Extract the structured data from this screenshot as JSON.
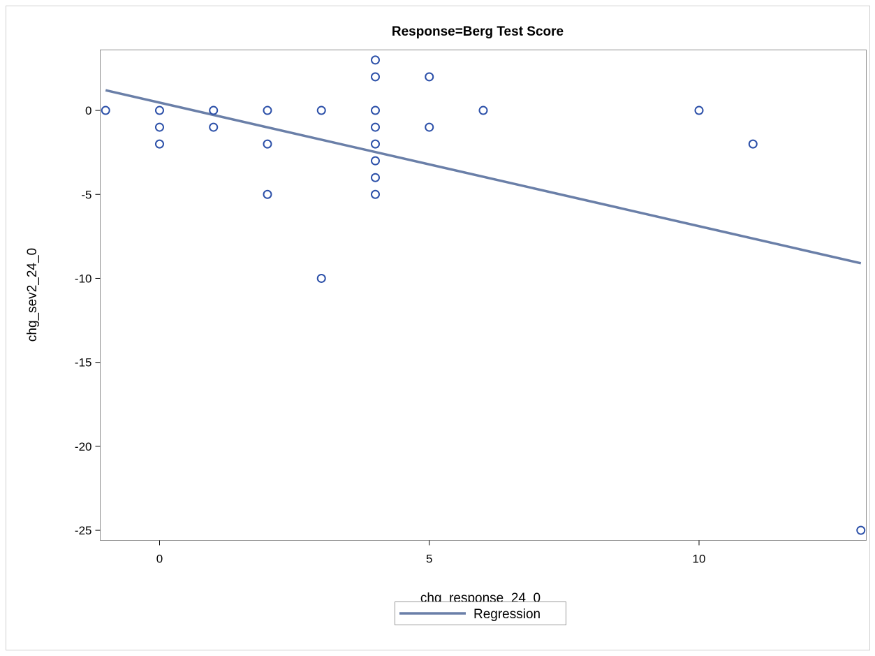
{
  "chart_data": {
    "type": "scatter",
    "title": "Response=Berg Test Score",
    "xlabel": "chg_response_24_0",
    "ylabel": "chg_sev2_24_0",
    "xlim": [
      -1.1,
      13.1
    ],
    "ylim": [
      -25.6,
      3.6
    ],
    "xticks": [
      0,
      5,
      10
    ],
    "yticks": [
      0,
      -5,
      -10,
      -15,
      -20,
      -25
    ],
    "grid": false,
    "legend_position": "bottom",
    "points": [
      {
        "x": -1,
        "y": 0
      },
      {
        "x": 0,
        "y": 0
      },
      {
        "x": 0,
        "y": -1
      },
      {
        "x": 0,
        "y": -2
      },
      {
        "x": 1,
        "y": 0
      },
      {
        "x": 1,
        "y": -1
      },
      {
        "x": 2,
        "y": 0
      },
      {
        "x": 2,
        "y": -2
      },
      {
        "x": 2,
        "y": -5
      },
      {
        "x": 3,
        "y": 0
      },
      {
        "x": 3,
        "y": -10
      },
      {
        "x": 4,
        "y": 3
      },
      {
        "x": 4,
        "y": 2
      },
      {
        "x": 4,
        "y": 0
      },
      {
        "x": 4,
        "y": -1
      },
      {
        "x": 4,
        "y": -2
      },
      {
        "x": 4,
        "y": -3
      },
      {
        "x": 4,
        "y": -4
      },
      {
        "x": 4,
        "y": -5
      },
      {
        "x": 5,
        "y": 2
      },
      {
        "x": 5,
        "y": -1
      },
      {
        "x": 6,
        "y": 0
      },
      {
        "x": 10,
        "y": 0
      },
      {
        "x": 11,
        "y": -2
      },
      {
        "x": 13,
        "y": -25
      }
    ],
    "series": [
      {
        "name": "Regression",
        "type": "line",
        "x": [
          -1,
          13
        ],
        "y": [
          1.2,
          -9.1
        ]
      }
    ],
    "colors": {
      "points": "#2b4fa8",
      "regression": "#6a7fa8"
    }
  }
}
